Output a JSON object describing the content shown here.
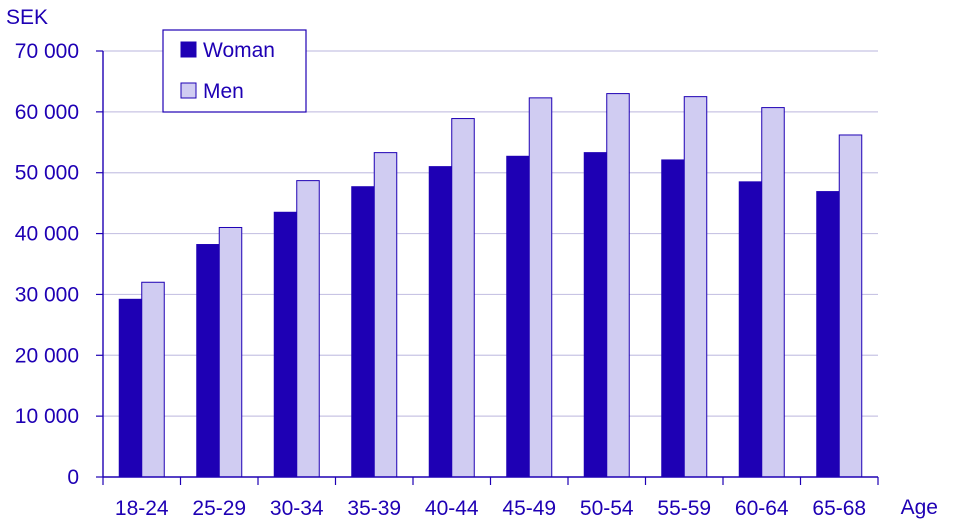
{
  "chart_data": {
    "type": "bar",
    "title": "",
    "ylabel": "SEK",
    "xlabel": "Age",
    "ylim": [
      0,
      70000
    ],
    "yticks": [
      0,
      10000,
      20000,
      30000,
      40000,
      50000,
      60000,
      70000
    ],
    "ytick_labels": [
      "0",
      "10 000",
      "20 000",
      "30 000",
      "40 000",
      "50 000",
      "60 000",
      "70 000"
    ],
    "grid": true,
    "legend_position": "top-left",
    "categories": [
      "18-24",
      "25-29",
      "30-34",
      "35-39",
      "40-44",
      "45-49",
      "50-54",
      "55-59",
      "60-64",
      "65-68"
    ],
    "series": [
      {
        "name": "Woman",
        "color": "#1e00b4",
        "values": [
          29200,
          38200,
          43500,
          47700,
          51000,
          52700,
          53300,
          52100,
          48500,
          46900
        ]
      },
      {
        "name": "Men",
        "color": "#d0ccf2",
        "values": [
          32000,
          41000,
          48700,
          53300,
          58900,
          62300,
          63000,
          62500,
          60700,
          56200
        ]
      }
    ],
    "colors": {
      "axis": "#1e00b4",
      "grid": "#c8c4e4",
      "text": "#1e00b4",
      "bar_stroke": "#1e00b4"
    }
  }
}
